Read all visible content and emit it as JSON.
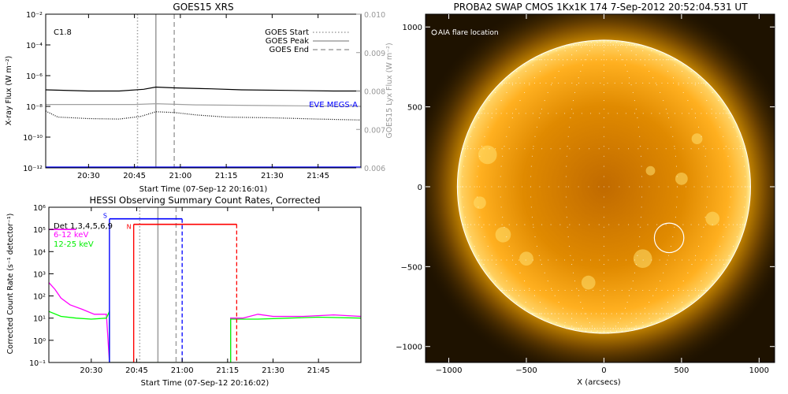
{
  "chart_data": [
    {
      "type": "line",
      "title": "GOES15 XRS",
      "xlabel": "Start Time (07-Sep-12 20:16:01)",
      "ylabel": "X-ray Flux (W m⁻²)",
      "ylabel_right": "GOES15 Lyx Flux (W m⁻²)",
      "annotation": "C1.8",
      "xticks": [
        "20:30",
        "20:45",
        "21:00",
        "21:15",
        "21:30",
        "21:45"
      ],
      "xlim": [
        "20:16",
        "21:59"
      ],
      "yscale": "log",
      "ylim": [
        1e-12,
        0.01
      ],
      "yticks": [
        "10⁻¹²",
        "10⁻¹⁰",
        "10⁻⁸",
        "10⁻⁶",
        "10⁻⁴",
        "10⁻²"
      ],
      "ylim_right": [
        0.006,
        0.01
      ],
      "yticks_right": [
        "0.006",
        "0.007",
        "0.008",
        "0.009",
        "0.010"
      ],
      "legend": [
        {
          "label": "GOES Start",
          "style": "dotted",
          "color": "#a0a0a0"
        },
        {
          "label": "GOES Peak",
          "style": "solid",
          "color": "#a0a0a0"
        },
        {
          "label": "GOES End",
          "style": "dashed",
          "color": "#a0a0a0"
        }
      ],
      "legend_position": "top-right",
      "eve_label": "EVE MEGS-A",
      "eve_color": "#0000ff",
      "markers": {
        "start": "20:46",
        "peak": "20:52",
        "end": "20:58"
      },
      "series": [
        {
          "color": "#000000",
          "points": [
            [
              "20:16",
              1.2e-07
            ],
            [
              "20:30",
              1e-07
            ],
            [
              "20:40",
              1e-07
            ],
            [
              "20:48",
              1.3e-07
            ],
            [
              "20:52",
              1.8e-07
            ],
            [
              "20:58",
              1.6e-07
            ],
            [
              "21:10",
              1.4e-07
            ],
            [
              "21:20",
              1.2e-07
            ],
            [
              "21:35",
              1.1e-07
            ],
            [
              "21:50",
              1e-07
            ],
            [
              "21:59",
              1e-07
            ]
          ]
        },
        {
          "color": "#000000",
          "style": "dotted",
          "points": [
            [
              "20:16",
              5e-09
            ],
            [
              "20:20",
              2e-09
            ],
            [
              "20:30",
              1.6e-09
            ],
            [
              "20:40",
              1.5e-09
            ],
            [
              "20:47",
              2.2e-09
            ],
            [
              "20:52",
              4.5e-09
            ],
            [
              "20:58",
              4e-09
            ],
            [
              "21:05",
              2.8e-09
            ],
            [
              "21:15",
              2e-09
            ],
            [
              "21:30",
              1.8e-09
            ],
            [
              "21:45",
              1.5e-09
            ],
            [
              "21:59",
              1.3e-09
            ]
          ]
        },
        {
          "color": "#a0a0a0",
          "points": [
            [
              "20:16",
              0.00765
            ],
            [
              "20:45",
              0.00765
            ],
            [
              "20:52",
              0.00767
            ],
            [
              "21:05",
              0.00764
            ],
            [
              "21:30",
              0.00762
            ],
            [
              "21:59",
              0.0076
            ]
          ]
        },
        {
          "color": "#0000ff",
          "points": [
            [
              "20:16",
              1e-12
            ],
            [
              "21:59",
              1e-12
            ]
          ]
        }
      ]
    },
    {
      "type": "line",
      "title": "HESSI Observing Summary Count Rates, Corrected",
      "xlabel": "Start Time (07-Sep-12 20:16:02)",
      "ylabel": "Corrected Count Rate (s⁻¹ detector⁻¹)",
      "xticks": [
        "20:30",
        "20:45",
        "21:00",
        "21:15",
        "21:30",
        "21:45"
      ],
      "xlim": [
        "20:16",
        "21:59"
      ],
      "yscale": "log",
      "ylim": [
        0.1,
        1000000.0
      ],
      "yticks": [
        "10⁻¹",
        "10⁰",
        "10¹",
        "10²",
        "10³",
        "10⁴",
        "10⁵",
        "10⁶"
      ],
      "legend": [
        {
          "label": "Det 1,3,4,5,6,9",
          "color": "#000000"
        },
        {
          "label": "6-12 keV",
          "color": "#ff00ff"
        },
        {
          "label": "12-25 keV",
          "color": "#00ff00"
        }
      ],
      "legend_position": "top-left",
      "bar_labels": {
        "s": "S",
        "n": "N"
      },
      "bars": [
        {
          "label": "S",
          "color": "#0000ff",
          "start": "20:36",
          "end": "21:00",
          "value": 300000.0
        },
        {
          "label": "N",
          "color": "#ff0000",
          "start": "20:44",
          "end": "21:18",
          "value": 170000.0
        }
      ],
      "series": [
        {
          "name": "6-12 keV",
          "color": "#ff00ff",
          "points": [
            [
              "20:16",
              400
            ],
            [
              "20:18",
              200
            ],
            [
              "20:20",
              80
            ],
            [
              "20:23",
              40
            ],
            [
              "20:27",
              25
            ],
            [
              "20:31",
              15
            ],
            [
              "20:35",
              15
            ],
            [
              "20:36",
              0.1
            ],
            [
              "21:16",
              0.1
            ],
            [
              "21:16",
              10
            ],
            [
              "21:20",
              10
            ],
            [
              "21:25",
              15
            ],
            [
              "21:30",
              12
            ],
            [
              "21:40",
              12
            ],
            [
              "21:50",
              14
            ],
            [
              "21:59",
              12
            ]
          ]
        },
        {
          "name": "12-25 keV",
          "color": "#00ff00",
          "points": [
            [
              "20:16",
              20
            ],
            [
              "20:20",
              12
            ],
            [
              "20:25",
              10
            ],
            [
              "20:30",
              9
            ],
            [
              "20:35",
              10
            ],
            [
              "20:36",
              20
            ],
            [
              "20:36",
              0.1
            ],
            [
              "21:16",
              0.1
            ],
            [
              "21:16",
              9
            ],
            [
              "21:25",
              9
            ],
            [
              "21:35",
              10
            ],
            [
              "21:45",
              11
            ],
            [
              "21:59",
              10
            ]
          ]
        }
      ]
    },
    {
      "type": "other",
      "title": "PROBA2 SWAP CMOS 1Kx1K 174  7-Sep-2012 20:52:04.531 UT",
      "xlabel": "X (arcsecs)",
      "ylabel": "",
      "legend": [
        "AIA flare location"
      ],
      "xlim": [
        -1150,
        1100
      ],
      "ylim": [
        -1100,
        1080
      ],
      "xticks": [
        "−1000",
        "−500",
        "0",
        "500",
        "1000"
      ],
      "yticks": [
        "−1000",
        "−500",
        "0",
        "500",
        "1000"
      ],
      "solar_radius": 945,
      "flare_location": [
        420,
        -320
      ],
      "flare_radius": 95,
      "colors": {
        "disk": "#ffa000",
        "corona": "#3a2200",
        "background": "#1e1200"
      }
    }
  ]
}
